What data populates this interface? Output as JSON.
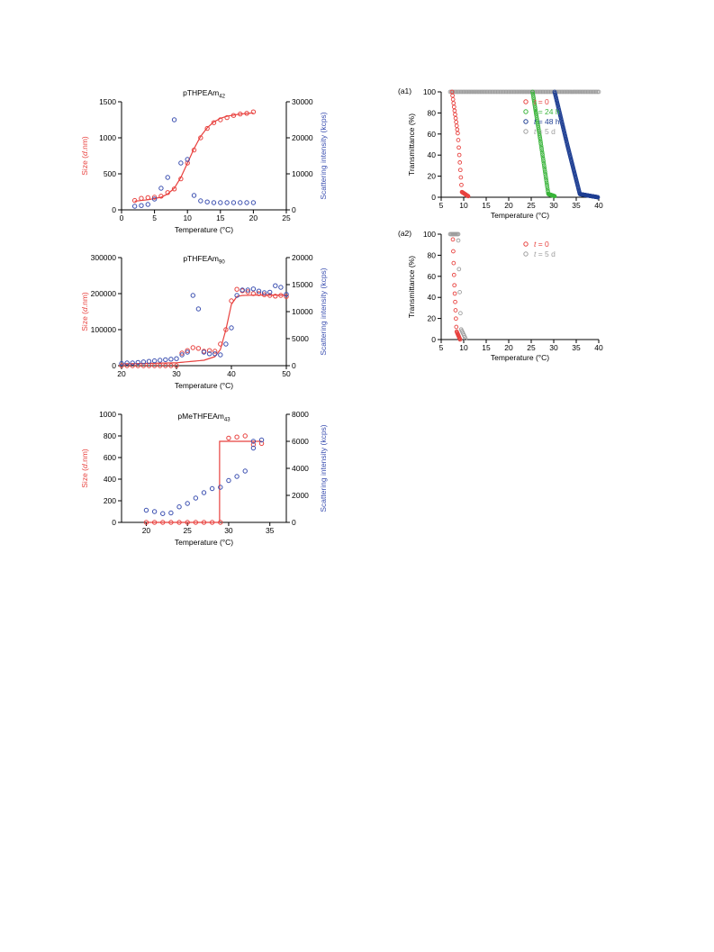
{
  "colors": {
    "red": "#e8413e",
    "blue": "#3b4fb0",
    "green": "#39b43a",
    "navy": "#1f3f93",
    "grey": "#9e9e9e",
    "axis": "#000000"
  },
  "chart_data": [
    {
      "id": "thpeam",
      "type": "scatter",
      "title": "pTHPEAm",
      "title_sub": "42",
      "xlabel": "Temperature (°C)",
      "ylabel_left": "Size (d.nm)",
      "ylabel_right": "Scattering intensity (kcps)",
      "xlim": [
        0,
        25
      ],
      "xticks": [
        "0",
        "5",
        "10",
        "15",
        "20",
        "25"
      ],
      "ylim_left": [
        0,
        1500
      ],
      "yticks_left": [
        "0",
        "500",
        "1000",
        "1500"
      ],
      "ylim_right": [
        0,
        30000
      ],
      "yticks_right": [
        "0",
        "10000",
        "20000",
        "30000"
      ],
      "series": [
        {
          "axis": "left",
          "color": "red",
          "x": [
            2,
            3,
            4,
            5,
            6,
            7,
            8,
            9,
            10,
            11,
            12,
            13,
            14,
            15,
            16,
            17,
            18,
            19,
            20
          ],
          "y": [
            130,
            160,
            170,
            175,
            190,
            240,
            290,
            430,
            650,
            830,
            1000,
            1130,
            1210,
            1250,
            1280,
            1310,
            1330,
            1340,
            1360
          ]
        },
        {
          "axis": "right",
          "color": "blue",
          "x": [
            2,
            3,
            4,
            5,
            6,
            7,
            8,
            9,
            10,
            11,
            12,
            13,
            14,
            15,
            16,
            17,
            18,
            19,
            20
          ],
          "y": [
            1000,
            1200,
            1500,
            3000,
            6000,
            9000,
            25000,
            13000,
            14000,
            4000,
            2500,
            2200,
            2000,
            2000,
            2000,
            2000,
            2000,
            2000,
            2000
          ]
        }
      ],
      "fit": {
        "axis": "left",
        "x": [
          2,
          4,
          6,
          7,
          8,
          9,
          10,
          11,
          12,
          13,
          14,
          15,
          16,
          18,
          20
        ],
        "y": [
          120,
          140,
          175,
          220,
          300,
          450,
          650,
          850,
          1020,
          1140,
          1220,
          1270,
          1300,
          1330,
          1345
        ]
      }
    },
    {
      "id": "thfeam",
      "type": "scatter",
      "title": "pTHFEAm",
      "title_sub": "90",
      "xlabel": "Temperature (°C)",
      "ylabel_left": "Size (d.nm)",
      "ylabel_right": "Scattering intensity (kcps)",
      "xlim": [
        20,
        50
      ],
      "xticks": [
        "20",
        "30",
        "40",
        "50"
      ],
      "ylim_left": [
        0,
        300000
      ],
      "yticks_left": [
        "0",
        "100000",
        "200000",
        "300000"
      ],
      "ylim_right": [
        0,
        20000
      ],
      "yticks_right": [
        "0",
        "5000",
        "10000",
        "15000",
        "20000"
      ],
      "series": [
        {
          "axis": "left",
          "color": "red",
          "x": [
            20,
            21,
            22,
            23,
            24,
            25,
            26,
            27,
            28,
            29,
            30,
            31,
            32,
            33,
            34,
            35,
            36,
            37,
            38,
            39,
            40,
            41,
            42,
            43,
            44,
            45,
            46,
            47,
            48,
            49,
            50
          ],
          "y": [
            0,
            0,
            0,
            0,
            0,
            0,
            0,
            0,
            0,
            0,
            0,
            35000,
            42000,
            50000,
            48000,
            40000,
            42000,
            40000,
            60000,
            100000,
            180000,
            212000,
            208000,
            205000,
            200000,
            200000,
            197000,
            195000,
            193000,
            195000,
            192000
          ]
        },
        {
          "axis": "right",
          "color": "blue",
          "x": [
            20,
            21,
            22,
            23,
            24,
            25,
            26,
            27,
            28,
            29,
            30,
            31,
            32,
            33,
            34,
            35,
            36,
            37,
            38,
            39,
            40,
            41,
            42,
            43,
            44,
            45,
            46,
            47,
            48,
            49,
            50
          ],
          "y": [
            400,
            500,
            500,
            600,
            700,
            800,
            900,
            1000,
            1100,
            1200,
            1300,
            2000,
            2500,
            13000,
            10500,
            2500,
            2200,
            2200,
            2000,
            4000,
            7000,
            13000,
            14000,
            14000,
            14200,
            13800,
            13500,
            13600,
            14800,
            14500,
            13200
          ]
        }
      ],
      "fit": {
        "axis": "left",
        "x": [
          20,
          30,
          35,
          37,
          38,
          39,
          40,
          41,
          42,
          45,
          50
        ],
        "y": [
          5000,
          8000,
          15000,
          25000,
          45000,
          100000,
          170000,
          192000,
          195000,
          196000,
          196000
        ]
      }
    },
    {
      "id": "methfeam",
      "type": "scatter",
      "title": "pMeTHFEAm",
      "title_sub": "43",
      "xlabel": "Temperature (°C)",
      "ylabel_left": "Size (d.nm)",
      "ylabel_right": "Scattering intensity (kcps)",
      "xlim": [
        17,
        37
      ],
      "xticks": [
        "20",
        "25",
        "30",
        "35"
      ],
      "ylim_left": [
        0,
        1000
      ],
      "yticks_left": [
        "0",
        "200",
        "400",
        "600",
        "800",
        "1000"
      ],
      "ylim_right": [
        0,
        8000
      ],
      "yticks_right": [
        "0",
        "2000",
        "4000",
        "6000",
        "8000"
      ],
      "series": [
        {
          "axis": "left",
          "color": "red",
          "x": [
            20,
            21,
            22,
            23,
            24,
            25,
            26,
            27,
            28,
            29,
            30,
            31,
            32,
            33,
            34
          ],
          "y": [
            0,
            0,
            0,
            0,
            0,
            0,
            0,
            0,
            0,
            0,
            780,
            790,
            800,
            720,
            730
          ]
        },
        {
          "axis": "right",
          "color": "blue",
          "x": [
            20,
            21,
            22,
            23,
            24,
            25,
            26,
            27,
            28,
            29,
            30,
            31,
            32,
            33,
            33,
            34
          ],
          "y": [
            900,
            800,
            650,
            700,
            1150,
            1400,
            1800,
            2200,
            2500,
            2600,
            3100,
            3400,
            3800,
            5500,
            6000,
            6100
          ]
        }
      ],
      "fit": {
        "axis": "left",
        "x": [
          20,
          28.9,
          28.9,
          34
        ],
        "y": [
          0,
          0,
          750,
          750
        ]
      }
    },
    {
      "id": "a1",
      "type": "scatter",
      "panel_label": "(a1)",
      "xlabel": "Temperature (°C)",
      "ylabel": "Transmittance (%)",
      "xlim": [
        5,
        40
      ],
      "xticks": [
        "5",
        "10",
        "15",
        "20",
        "25",
        "30",
        "35",
        "40"
      ],
      "ylim": [
        0,
        100
      ],
      "yticks": [
        "0",
        "20",
        "40",
        "60",
        "80",
        "100"
      ],
      "legend": [
        {
          "t": "t",
          "rest": " = 0",
          "color": "red"
        },
        {
          "t": "t",
          "rest": " = 24 h",
          "color": "green"
        },
        {
          "t": "t",
          "rest": " = 48 h",
          "color": "navy"
        },
        {
          "t": "t",
          "rest": " = 5 d",
          "color": "grey"
        }
      ],
      "curves": [
        {
          "color": "grey",
          "x": [
            7,
            40
          ],
          "y": [
            100,
            100
          ],
          "n": 110
        },
        {
          "color": "red",
          "x": [
            7.4,
            8.7,
            9.6,
            11.0
          ],
          "y": [
            100,
            60,
            5,
            1
          ],
          "n": 32
        },
        {
          "color": "green",
          "x": [
            25.3,
            27.0,
            28.8,
            30.2
          ],
          "y": [
            100,
            55,
            3,
            1
          ],
          "n": 70
        },
        {
          "color": "navy",
          "x": [
            30.2,
            33.0,
            35.8,
            39.8
          ],
          "y": [
            100,
            50,
            3,
            0
          ],
          "n": 140
        }
      ]
    },
    {
      "id": "a2",
      "type": "scatter",
      "panel_label": "(a2)",
      "xlabel": "Temperature (°C)",
      "ylabel": "Transmittance (%)",
      "xlim": [
        5,
        40
      ],
      "xticks": [
        "5",
        "10",
        "15",
        "20",
        "25",
        "30",
        "35",
        "40"
      ],
      "ylim": [
        0,
        100
      ],
      "yticks": [
        "0",
        "20",
        "40",
        "60",
        "80",
        "100"
      ],
      "legend": [
        {
          "t": "t",
          "rest": " = 0",
          "color": "red"
        },
        {
          "t": "t",
          "rest": " = 5 d",
          "color": "grey"
        }
      ],
      "curves": [
        {
          "color": "grey",
          "x": [
            7.0,
            8.8
          ],
          "y": [
            100,
            100
          ],
          "n": 10
        },
        {
          "color": "grey",
          "x": [
            8.8,
            9.0,
            9.4,
            10.4
          ],
          "y": [
            94,
            60,
            10,
            1
          ],
          "n": 11
        },
        {
          "color": "red",
          "x": [
            7.6,
            7.9,
            8.4,
            9.2
          ],
          "y": [
            95,
            55,
            8,
            0
          ],
          "n": 20
        }
      ]
    }
  ]
}
